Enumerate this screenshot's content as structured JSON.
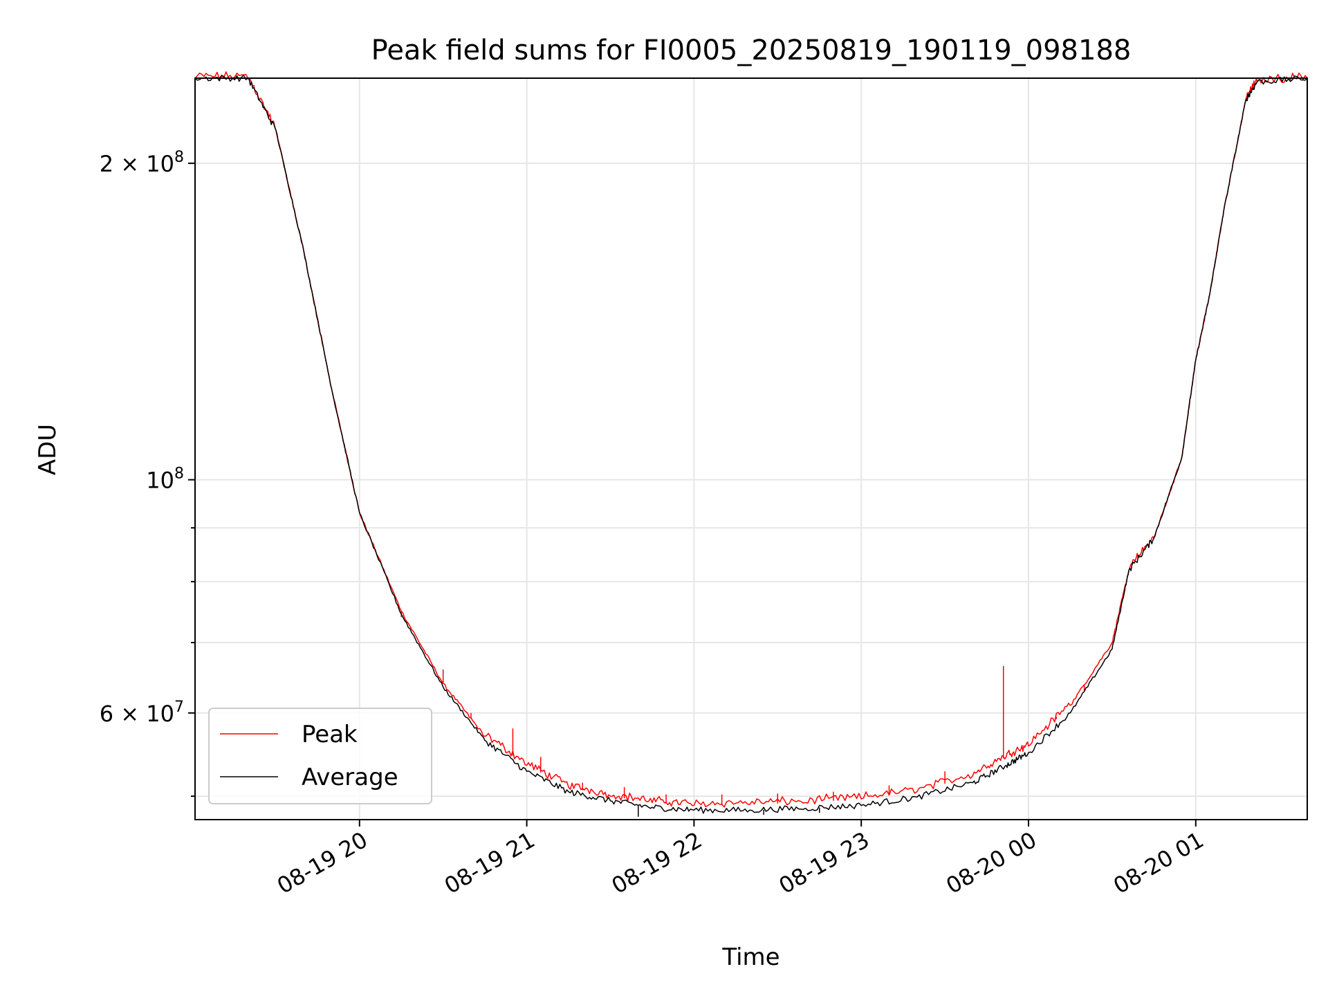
{
  "chart_data": {
    "type": "line",
    "title": "Peak field sums for FI0005_20250819_190119_098188",
    "xlabel": "Time",
    "ylabel": "ADU",
    "y_scale": "log",
    "grid": true,
    "legend_position": "lower-left",
    "xlim": [
      "2025-08-19T19:01",
      "2025-08-20T01:40"
    ],
    "ylim": [
      47500000,
      241000000
    ],
    "x_ticks": [
      {
        "t": "2025-08-19T20:00",
        "label": "08-19 20"
      },
      {
        "t": "2025-08-19T21:00",
        "label": "08-19 21"
      },
      {
        "t": "2025-08-19T22:00",
        "label": "08-19 22"
      },
      {
        "t": "2025-08-19T23:00",
        "label": "08-19 23"
      },
      {
        "t": "2025-08-20T00:00",
        "label": "08-20 00"
      },
      {
        "t": "2025-08-20T01:00",
        "label": "08-20 01"
      }
    ],
    "y_major_ticks": [
      {
        "value": 60000000,
        "label": "6 × 10⁷",
        "mantissa": "6",
        "exp": "7"
      },
      {
        "value": 100000000,
        "label": "10⁸",
        "mantissa": "",
        "exp": "8"
      },
      {
        "value": 200000000,
        "label": "2 × 10⁸",
        "mantissa": "2",
        "exp": "8"
      }
    ],
    "y_minor_ticks": [
      50000000,
      70000000,
      80000000,
      90000000
    ],
    "series": [
      {
        "name": "Peak",
        "color": "#ff0000",
        "points": [
          [
            "2025-08-19T19:01",
            241000000
          ],
          [
            "2025-08-19T19:20",
            241000000
          ],
          [
            "2025-08-19T19:30",
            215000000
          ],
          [
            "2025-08-19T19:40",
            165000000
          ],
          [
            "2025-08-19T19:50",
            122000000
          ],
          [
            "2025-08-19T20:00",
            93000000
          ],
          [
            "2025-08-19T20:15",
            75000000
          ],
          [
            "2025-08-19T20:30",
            64000000
          ],
          [
            "2025-08-19T20:45",
            57000000
          ],
          [
            "2025-08-19T21:00",
            53500000
          ],
          [
            "2025-08-19T21:15",
            51000000
          ],
          [
            "2025-08-19T21:30",
            50000000
          ],
          [
            "2025-08-19T21:45",
            49300000
          ],
          [
            "2025-08-19T22:00",
            49000000
          ],
          [
            "2025-08-19T22:20",
            49100000
          ],
          [
            "2025-08-19T22:40",
            49300000
          ],
          [
            "2025-08-19T23:00",
            49700000
          ],
          [
            "2025-08-19T23:20",
            50500000
          ],
          [
            "2025-08-19T23:40",
            52300000
          ],
          [
            "2025-08-19T23:52",
            54500000
          ],
          [
            "2025-08-20T00:00",
            55800000
          ],
          [
            "2025-08-20T00:15",
            61000000
          ],
          [
            "2025-08-20T00:30",
            70000000
          ],
          [
            "2025-08-20T00:36",
            82000000
          ],
          [
            "2025-08-20T00:45",
            88000000
          ],
          [
            "2025-08-20T00:55",
            105000000
          ],
          [
            "2025-08-20T01:00",
            130000000
          ],
          [
            "2025-08-20T01:05",
            150000000
          ],
          [
            "2025-08-20T01:10",
            180000000
          ],
          [
            "2025-08-20T01:18",
            230000000
          ],
          [
            "2025-08-20T01:22",
            239000000
          ],
          [
            "2025-08-20T01:40",
            241000000
          ]
        ],
        "spikes": [
          [
            "2025-08-19T20:15",
            74000000
          ],
          [
            "2025-08-19T20:30",
            66000000
          ],
          [
            "2025-08-19T20:40",
            60000000
          ],
          [
            "2025-08-19T20:55",
            58000000
          ],
          [
            "2025-08-19T21:05",
            54500000
          ],
          [
            "2025-08-19T21:20",
            51500000
          ],
          [
            "2025-08-19T21:35",
            51000000
          ],
          [
            "2025-08-19T21:50",
            50200000
          ],
          [
            "2025-08-19T22:10",
            50200000
          ],
          [
            "2025-08-19T22:30",
            50300000
          ],
          [
            "2025-08-19T22:50",
            50500000
          ],
          [
            "2025-08-19T23:10",
            51200000
          ],
          [
            "2025-08-19T23:30",
            52800000
          ],
          [
            "2025-08-19T23:51",
            66500000
          ],
          [
            "2025-08-20T00:10",
            59500000
          ],
          [
            "2025-08-20T00:20",
            63000000
          ]
        ]
      },
      {
        "name": "Average",
        "color": "#000000",
        "points": [
          [
            "2025-08-19T19:01",
            241000000
          ],
          [
            "2025-08-19T19:20",
            241000000
          ],
          [
            "2025-08-19T19:30",
            215000000
          ],
          [
            "2025-08-19T19:40",
            165000000
          ],
          [
            "2025-08-19T19:50",
            122000000
          ],
          [
            "2025-08-19T20:00",
            93000000
          ],
          [
            "2025-08-19T20:15",
            74500000
          ],
          [
            "2025-08-19T20:30",
            63500000
          ],
          [
            "2025-08-19T20:45",
            56500000
          ],
          [
            "2025-08-19T21:00",
            52800000
          ],
          [
            "2025-08-19T21:15",
            50500000
          ],
          [
            "2025-08-19T21:30",
            49500000
          ],
          [
            "2025-08-19T21:45",
            48800000
          ],
          [
            "2025-08-19T22:00",
            48500000
          ],
          [
            "2025-08-19T22:20",
            48500000
          ],
          [
            "2025-08-19T22:40",
            48700000
          ],
          [
            "2025-08-19T23:00",
            49000000
          ],
          [
            "2025-08-19T23:20",
            49900000
          ],
          [
            "2025-08-19T23:40",
            51500000
          ],
          [
            "2025-08-19T23:52",
            53500000
          ],
          [
            "2025-08-20T00:00",
            55000000
          ],
          [
            "2025-08-20T00:15",
            60000000
          ],
          [
            "2025-08-20T00:30",
            69000000
          ],
          [
            "2025-08-20T00:36",
            82000000
          ],
          [
            "2025-08-20T00:45",
            88000000
          ],
          [
            "2025-08-20T00:55",
            105000000
          ],
          [
            "2025-08-20T01:00",
            130000000
          ],
          [
            "2025-08-20T01:05",
            150000000
          ],
          [
            "2025-08-20T01:10",
            180000000
          ],
          [
            "2025-08-20T01:18",
            230000000
          ],
          [
            "2025-08-20T01:22",
            239000000
          ],
          [
            "2025-08-20T01:40",
            241000000
          ]
        ],
        "spikes": [
          [
            "2025-08-19T21:40",
            47800000
          ],
          [
            "2025-08-19T22:25",
            48000000
          ],
          [
            "2025-08-19T22:45",
            48200000
          ]
        ]
      }
    ]
  }
}
